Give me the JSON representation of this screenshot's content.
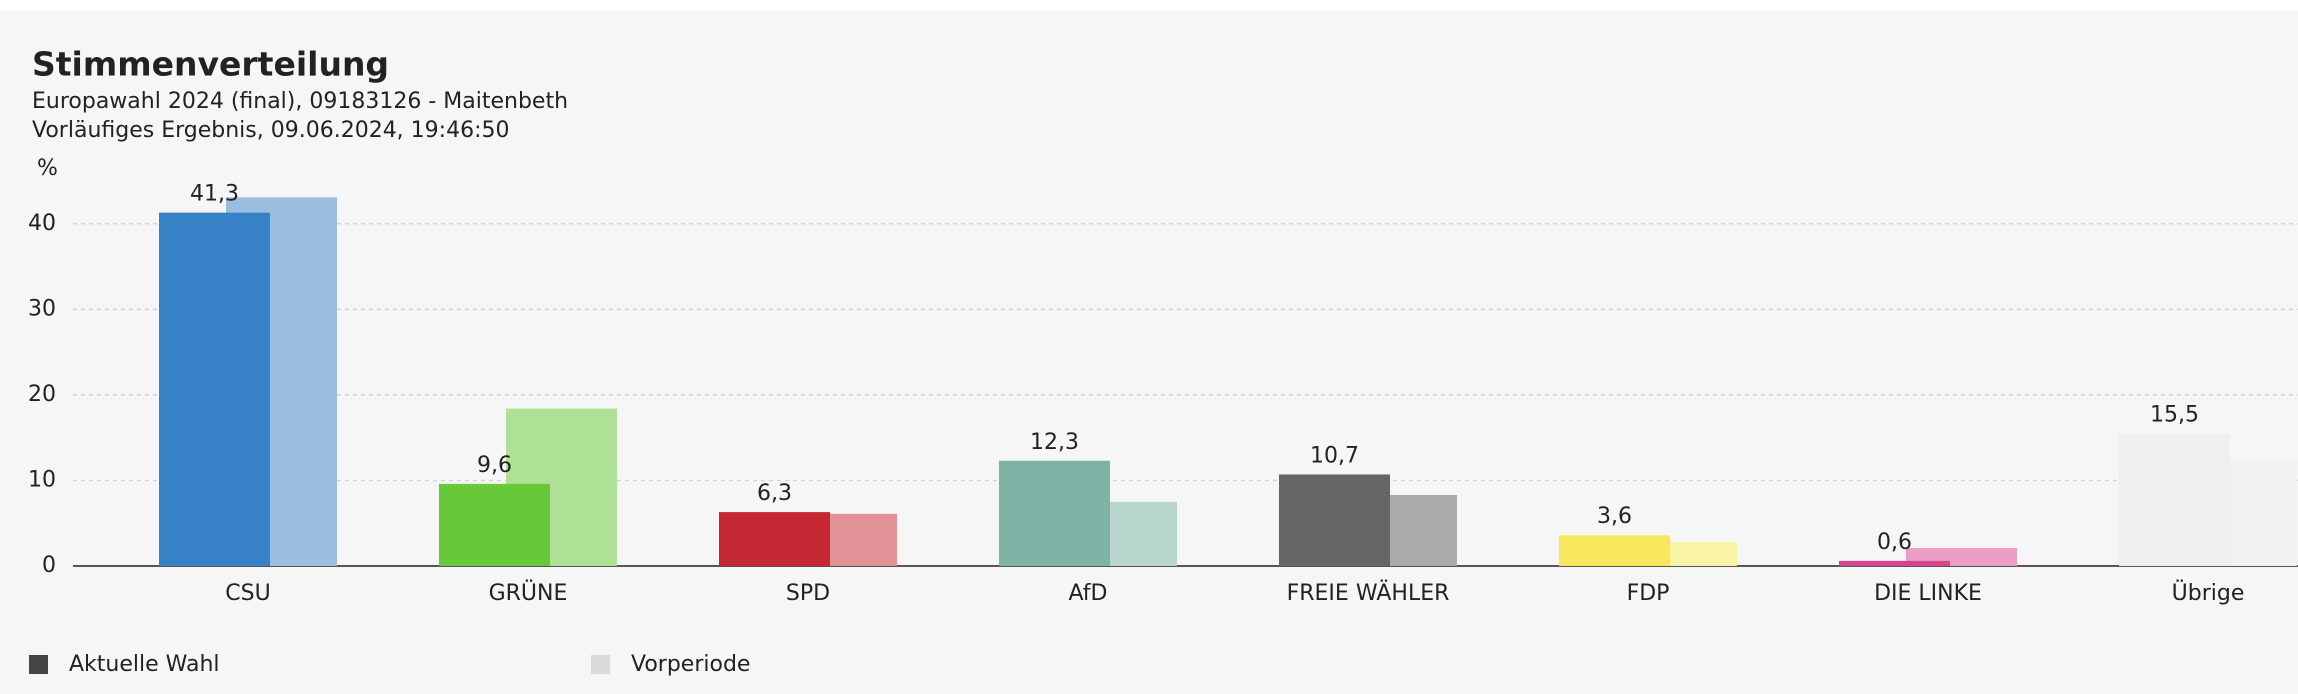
{
  "chart_data": {
    "type": "bar",
    "title": "Stimmenverteilung",
    "subtitle": "Europawahl 2024 (final), 09183126 - Maitenbeth",
    "subtitle2": "Vorläufiges Ergebnis, 09.06.2024, 19:46:50",
    "y_label": "%",
    "categories": [
      "CSU",
      "GRÜNE",
      "SPD",
      "AfD",
      "FREIE WÄHLER",
      "FDP",
      "DIE LINKE",
      "Übrige"
    ],
    "series": [
      {
        "name": "Aktuelle Wahl",
        "color": "#444444",
        "colors": [
          "#3781c7",
          "#67c93a",
          "#c52832",
          "#7fb3a5",
          "#666666",
          "#f8e75d",
          "#d6468d",
          "#efefef"
        ],
        "values": [
          41.3,
          9.6,
          6.3,
          12.3,
          10.7,
          3.6,
          0.6,
          15.5
        ],
        "value_labels": [
          "41,3",
          "9,6",
          "6,3",
          "12,3",
          "10,7",
          "3,6",
          "0,6",
          "15,5"
        ]
      },
      {
        "name": "Vorperiode",
        "color": "#d9d9d9",
        "colors": [
          "#9abde0",
          "#aee196",
          "#e09297",
          "#b8d5ce",
          "#aaaaaa",
          "#faf2a4",
          "#ec9ec4",
          "#f1f1f1"
        ],
        "values": [
          43.1,
          18.4,
          6.1,
          7.5,
          8.3,
          2.8,
          2.1,
          12.5
        ]
      }
    ],
    "ylim": [
      0,
      45
    ],
    "yticks": [
      0,
      10,
      20,
      30,
      40
    ],
    "grid": true
  }
}
